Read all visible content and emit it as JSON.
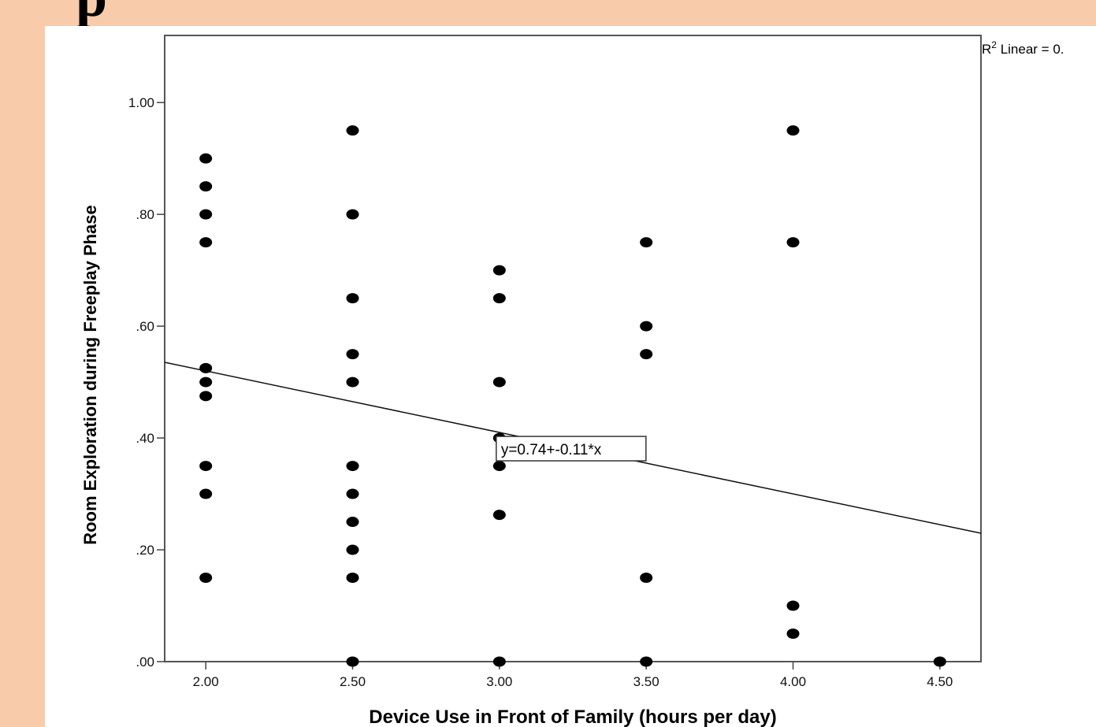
{
  "slide": {
    "title_fragment": "p"
  },
  "chart_data": {
    "type": "scatter",
    "xlabel": "Device Use in Front of Family (hours per day)",
    "ylabel": "Room Exploration during Freeplay Phase",
    "xlim": [
      1.86,
      4.64
    ],
    "ylim": [
      0.0,
      1.12
    ],
    "xticks": [
      "2.00",
      "2.50",
      "3.00",
      "3.50",
      "4.00",
      "4.50"
    ],
    "yticks": [
      ".00",
      ".20",
      ".40",
      ".60",
      ".80",
      "1.00"
    ],
    "xtick_values": [
      2.0,
      2.5,
      3.0,
      3.5,
      4.0,
      4.5
    ],
    "ytick_values": [
      0.0,
      0.2,
      0.4,
      0.6,
      0.8,
      1.0
    ],
    "grid": false,
    "legend": "R² Linear = 0.",
    "annotation": "y=0.74+-0.11*x",
    "fit_line": {
      "intercept": 0.74,
      "slope": -0.11
    },
    "points": [
      {
        "x": 2.0,
        "y": 0.9
      },
      {
        "x": 2.0,
        "y": 0.85
      },
      {
        "x": 2.0,
        "y": 0.8
      },
      {
        "x": 2.0,
        "y": 0.75
      },
      {
        "x": 2.0,
        "y": 0.525
      },
      {
        "x": 2.0,
        "y": 0.5
      },
      {
        "x": 2.0,
        "y": 0.475
      },
      {
        "x": 2.0,
        "y": 0.35
      },
      {
        "x": 2.0,
        "y": 0.3
      },
      {
        "x": 2.0,
        "y": 0.15
      },
      {
        "x": 2.5,
        "y": 0.95
      },
      {
        "x": 2.5,
        "y": 0.8
      },
      {
        "x": 2.5,
        "y": 0.65
      },
      {
        "x": 2.5,
        "y": 0.55
      },
      {
        "x": 2.5,
        "y": 0.5
      },
      {
        "x": 2.5,
        "y": 0.35
      },
      {
        "x": 2.5,
        "y": 0.3
      },
      {
        "x": 2.5,
        "y": 0.25
      },
      {
        "x": 2.5,
        "y": 0.2
      },
      {
        "x": 2.5,
        "y": 0.15
      },
      {
        "x": 2.5,
        "y": 0.0
      },
      {
        "x": 3.0,
        "y": 0.7
      },
      {
        "x": 3.0,
        "y": 0.65
      },
      {
        "x": 3.0,
        "y": 0.5
      },
      {
        "x": 3.0,
        "y": 0.4
      },
      {
        "x": 3.0,
        "y": 0.35
      },
      {
        "x": 3.0,
        "y": 0.2625
      },
      {
        "x": 3.0,
        "y": 0.0
      },
      {
        "x": 3.5,
        "y": 0.75
      },
      {
        "x": 3.5,
        "y": 0.6
      },
      {
        "x": 3.5,
        "y": 0.55
      },
      {
        "x": 3.5,
        "y": 0.15
      },
      {
        "x": 3.5,
        "y": 0.0
      },
      {
        "x": 4.0,
        "y": 0.95
      },
      {
        "x": 4.0,
        "y": 0.75
      },
      {
        "x": 4.0,
        "y": 0.1
      },
      {
        "x": 4.0,
        "y": 0.05
      },
      {
        "x": 4.5,
        "y": 0.0
      }
    ]
  }
}
